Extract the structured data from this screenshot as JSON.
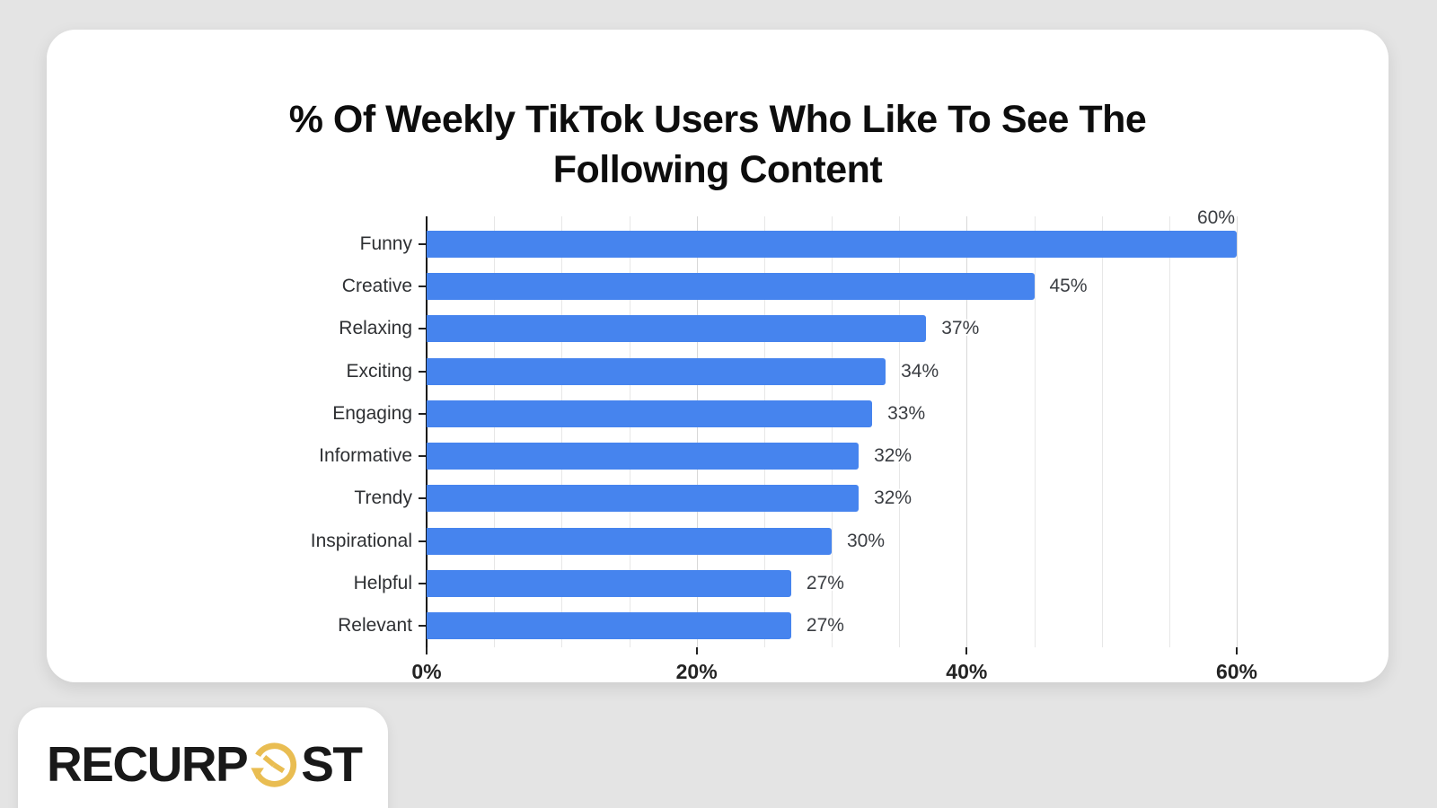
{
  "page": {
    "background_color": "#e4e4e4"
  },
  "chart_data": {
    "type": "bar",
    "orientation": "horizontal",
    "title": "% Of Weekly TikTok Users Who Like To See The Following Content",
    "categories": [
      "Funny",
      "Creative",
      "Relaxing",
      "Exciting",
      "Engaging",
      "Informative",
      "Trendy",
      "Inspirational",
      "Helpful",
      "Relevant"
    ],
    "values": [
      60,
      45,
      37,
      34,
      33,
      32,
      32,
      30,
      27,
      27
    ],
    "value_labels": [
      "60%",
      "45%",
      "37%",
      "34%",
      "33%",
      "32%",
      "32%",
      "30%",
      "27%",
      "27%"
    ],
    "xlabel": "",
    "ylabel": "",
    "xlim": [
      0,
      60
    ],
    "x_tick_values": [
      0,
      20,
      40,
      60
    ],
    "x_tick_labels": [
      "0%",
      "20%",
      "40%",
      "60%"
    ],
    "gridline_step": 5,
    "grid_on": true,
    "legend_position": "none",
    "bar_color": "#4684ee",
    "data_label_color": "#3a3d42",
    "axis_color": "#111111",
    "minor_grid_color": "#e7e7e7",
    "major_grid_color": "#d8d8d8"
  },
  "logo": {
    "text_left": "RECURP",
    "text_right": "ST",
    "clock_icon_color": "#e9bd52"
  }
}
